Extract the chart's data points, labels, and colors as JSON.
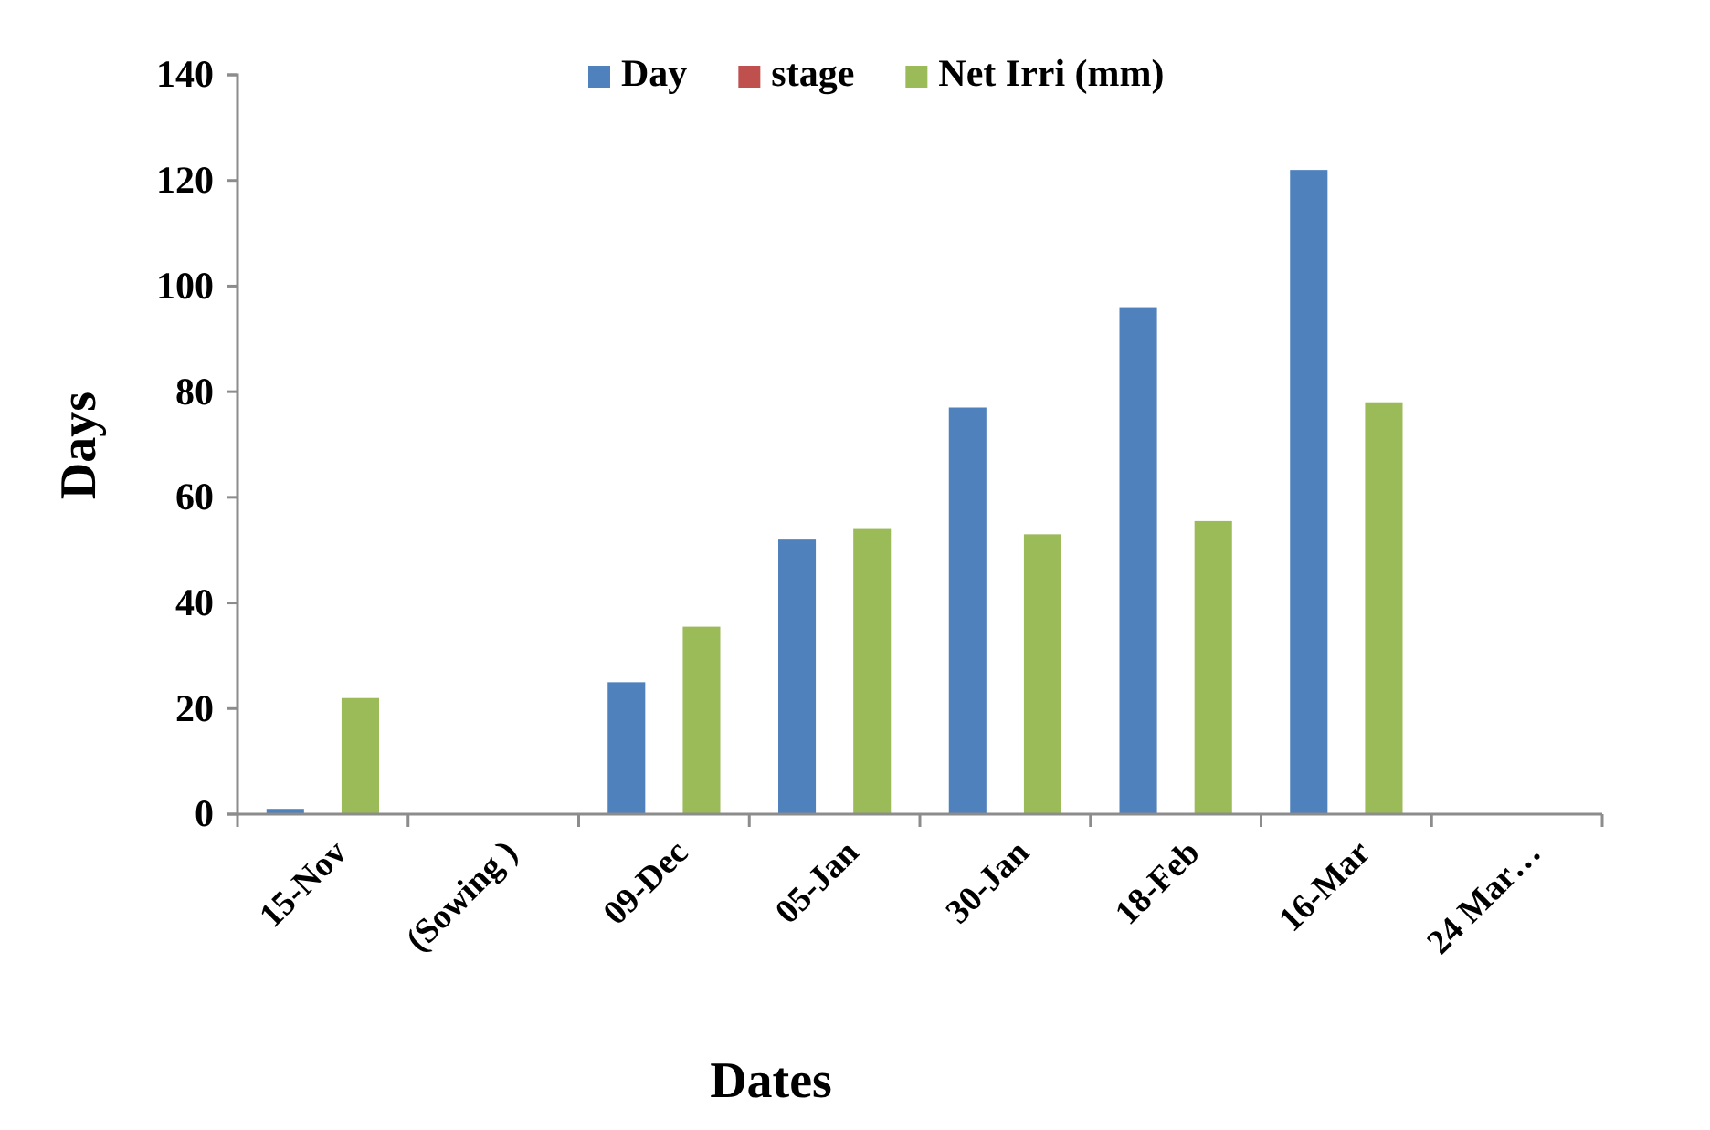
{
  "chart_data": {
    "type": "bar",
    "xlabel": "Dates",
    "ylabel": "Days",
    "categories": [
      "15-Nov",
      "(Sowing )",
      "09-Dec",
      "05-Jan",
      "30-Jan",
      "18-Feb",
      "16-Mar",
      "24 Mar…"
    ],
    "series": [
      {
        "name": "Day",
        "color": "#4f81bd",
        "values": [
          1,
          null,
          25,
          52,
          77,
          96,
          122,
          null
        ]
      },
      {
        "name": "stage",
        "color": "#c0504d",
        "values": [
          null,
          null,
          null,
          null,
          null,
          null,
          null,
          null
        ]
      },
      {
        "name": "Net Irri (mm)",
        "color": "#9bbb59",
        "values": [
          22,
          null,
          35.5,
          54,
          53,
          55.5,
          78,
          null
        ]
      }
    ],
    "ylim": [
      0,
      140
    ],
    "yticks": [
      0,
      20,
      40,
      60,
      80,
      100,
      120,
      140
    ],
    "grid": false,
    "legend": "top"
  }
}
